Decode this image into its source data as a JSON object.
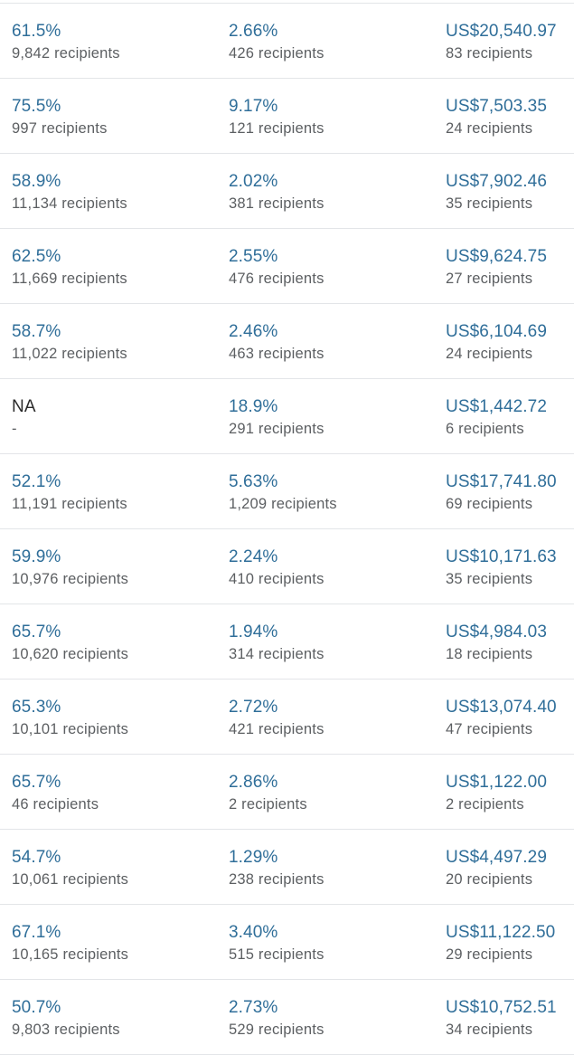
{
  "rows": [
    {
      "open_rate": "61.5%",
      "open_recipients": "9,842 recipients",
      "click_rate": "2.66%",
      "click_recipients": "426 recipients",
      "revenue": "US$20,540.97",
      "revenue_recipients": "83 recipients"
    },
    {
      "open_rate": "75.5%",
      "open_recipients": "997 recipients",
      "click_rate": "9.17%",
      "click_recipients": "121 recipients",
      "revenue": "US$7,503.35",
      "revenue_recipients": "24 recipients"
    },
    {
      "open_rate": "58.9%",
      "open_recipients": "11,134 recipients",
      "click_rate": "2.02%",
      "click_recipients": "381 recipients",
      "revenue": "US$7,902.46",
      "revenue_recipients": "35 recipients"
    },
    {
      "open_rate": "62.5%",
      "open_recipients": "11,669 recipients",
      "click_rate": "2.55%",
      "click_recipients": "476 recipients",
      "revenue": "US$9,624.75",
      "revenue_recipients": "27 recipients"
    },
    {
      "open_rate": "58.7%",
      "open_recipients": "11,022 recipients",
      "click_rate": "2.46%",
      "click_recipients": "463 recipients",
      "revenue": "US$6,104.69",
      "revenue_recipients": "24 recipients"
    },
    {
      "open_rate": "NA",
      "open_recipients": "-",
      "click_rate": "18.9%",
      "click_recipients": "291 recipients",
      "revenue": "US$1,442.72",
      "revenue_recipients": "6 recipients"
    },
    {
      "open_rate": "52.1%",
      "open_recipients": "11,191 recipients",
      "click_rate": "5.63%",
      "click_recipients": "1,209 recipients",
      "revenue": "US$17,741.80",
      "revenue_recipients": "69 recipients"
    },
    {
      "open_rate": "59.9%",
      "open_recipients": "10,976 recipients",
      "click_rate": "2.24%",
      "click_recipients": "410 recipients",
      "revenue": "US$10,171.63",
      "revenue_recipients": "35 recipients"
    },
    {
      "open_rate": "65.7%",
      "open_recipients": "10,620 recipients",
      "click_rate": "1.94%",
      "click_recipients": "314 recipients",
      "revenue": "US$4,984.03",
      "revenue_recipients": "18 recipients"
    },
    {
      "open_rate": "65.3%",
      "open_recipients": "10,101 recipients",
      "click_rate": "2.72%",
      "click_recipients": "421 recipients",
      "revenue": "US$13,074.40",
      "revenue_recipients": "47 recipients"
    },
    {
      "open_rate": "65.7%",
      "open_recipients": "46 recipients",
      "click_rate": "2.86%",
      "click_recipients": "2 recipients",
      "revenue": "US$1,122.00",
      "revenue_recipients": "2 recipients"
    },
    {
      "open_rate": "54.7%",
      "open_recipients": "10,061 recipients",
      "click_rate": "1.29%",
      "click_recipients": "238 recipients",
      "revenue": "US$4,497.29",
      "revenue_recipients": "20 recipients"
    },
    {
      "open_rate": "67.1%",
      "open_recipients": "10,165 recipients",
      "click_rate": "3.40%",
      "click_recipients": "515 recipients",
      "revenue": "US$11,122.50",
      "revenue_recipients": "29 recipients"
    },
    {
      "open_rate": "50.7%",
      "open_recipients": "9,803 recipients",
      "click_rate": "2.73%",
      "click_recipients": "529 recipients",
      "revenue": "US$10,752.51",
      "revenue_recipients": "34 recipients"
    }
  ],
  "colors": {
    "metric_link": "#2f6e99",
    "na_text": "#2b2b2b",
    "subtext": "#5c5f62",
    "divider": "#e3e5e8"
  }
}
